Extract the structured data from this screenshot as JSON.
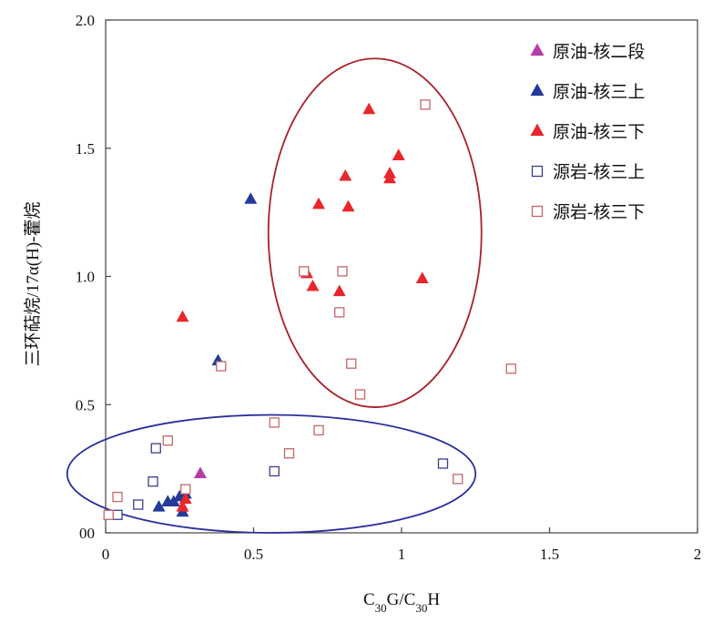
{
  "chart_data": {
    "type": "scatter",
    "xlabel": "C30G/C30H",
    "ylabel": "三环萜烷/17α(H)-藿烷",
    "xlim": [
      0,
      2
    ],
    "ylim": [
      0,
      2
    ],
    "x_ticks": [
      "0",
      "0.5",
      "1",
      "1.5",
      "2"
    ],
    "y_ticks": [
      "00",
      "0.5",
      "1.0",
      "1.5",
      "2.0"
    ],
    "legend_position": "top-right",
    "colors": {
      "magenta": "#b43ca8",
      "blue": "#233a9a",
      "red": "#e8262c",
      "navy": "#3a3e8c",
      "pink": "#c2686a",
      "ellipse_red": "#a8202c",
      "ellipse_blue": "#2a2f9a"
    },
    "series": [
      {
        "name": "原油-核二段",
        "marker": "triangle",
        "filled": true,
        "color": "#b43ca8",
        "points": [
          [
            0.32,
            0.23
          ]
        ]
      },
      {
        "name": "原油-核三上",
        "marker": "triangle",
        "filled": true,
        "color": "#233a9a",
        "points": [
          [
            0.49,
            1.3
          ],
          [
            0.38,
            0.67
          ],
          [
            0.18,
            0.1
          ],
          [
            0.21,
            0.12
          ],
          [
            0.23,
            0.12
          ],
          [
            0.25,
            0.14
          ],
          [
            0.27,
            0.15
          ],
          [
            0.26,
            0.08
          ]
        ]
      },
      {
        "name": "原油-核三下",
        "marker": "triangle",
        "filled": true,
        "color": "#e8262c",
        "points": [
          [
            0.89,
            1.65
          ],
          [
            0.99,
            1.47
          ],
          [
            0.81,
            1.39
          ],
          [
            0.96,
            1.4
          ],
          [
            0.96,
            1.38
          ],
          [
            0.72,
            1.28
          ],
          [
            0.82,
            1.27
          ],
          [
            0.68,
            1.01
          ],
          [
            0.7,
            0.96
          ],
          [
            0.79,
            0.94
          ],
          [
            1.07,
            0.99
          ],
          [
            0.26,
            0.84
          ],
          [
            0.26,
            0.1
          ],
          [
            0.27,
            0.13
          ]
        ]
      },
      {
        "name": "源岩-核三上",
        "marker": "square",
        "filled": false,
        "color": "#3a3e8c",
        "points": [
          [
            0.17,
            0.33
          ],
          [
            0.16,
            0.2
          ],
          [
            0.11,
            0.11
          ],
          [
            0.04,
            0.07
          ],
          [
            0.57,
            0.24
          ],
          [
            1.14,
            0.27
          ]
        ]
      },
      {
        "name": "源岩-核三下",
        "marker": "square",
        "filled": false,
        "color": "#c2686a",
        "points": [
          [
            1.08,
            1.67
          ],
          [
            0.67,
            1.02
          ],
          [
            0.8,
            1.02
          ],
          [
            0.79,
            0.86
          ],
          [
            0.83,
            0.66
          ],
          [
            0.39,
            0.65
          ],
          [
            0.86,
            0.54
          ],
          [
            1.37,
            0.64
          ],
          [
            0.57,
            0.43
          ],
          [
            0.72,
            0.4
          ],
          [
            0.62,
            0.31
          ],
          [
            0.21,
            0.36
          ],
          [
            0.27,
            0.17
          ],
          [
            0.04,
            0.14
          ],
          [
            0.01,
            0.07
          ],
          [
            1.19,
            0.21
          ]
        ]
      }
    ],
    "ellipses": [
      {
        "color": "#a8202c",
        "cx": 0.91,
        "cy": 1.17,
        "rx": 0.36,
        "ry": 0.68
      },
      {
        "color": "#2a2f9a",
        "cx": 0.56,
        "cy": 0.23,
        "rx": 0.69,
        "ry": 0.23
      }
    ]
  }
}
